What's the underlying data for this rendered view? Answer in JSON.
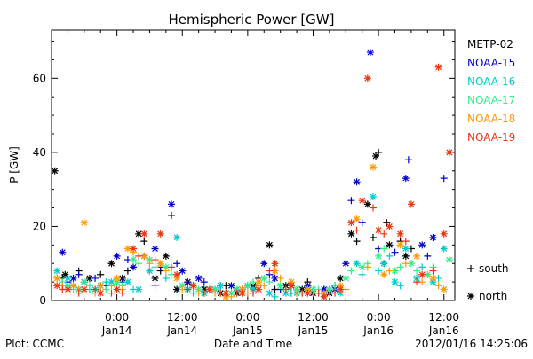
{
  "chart_data": {
    "type": "scatter",
    "title": "Hemispheric Power [GW]",
    "xlabel": "Date and Time",
    "ylabel": "P [GW]",
    "footer_left": "Plot: CCMC",
    "footer_right": "2012/01/16 14:25:06",
    "xlim": [
      -12,
      62
    ],
    "ylim": [
      0,
      73
    ],
    "grid": false,
    "legend_position": "right",
    "y_ticks": [
      "0",
      "20",
      "40",
      "60"
    ],
    "x_ticks": [
      {
        "x": 0,
        "time": "0:00",
        "date": "Jan14"
      },
      {
        "x": 12,
        "time": "12:00",
        "date": "Jan14"
      },
      {
        "x": 24,
        "time": "0:00",
        "date": "Jan15"
      },
      {
        "x": 36,
        "time": "12:00",
        "date": "Jan15"
      },
      {
        "x": 48,
        "time": "0:00",
        "date": "Jan16"
      },
      {
        "x": 60,
        "time": "12:00",
        "date": "Jan16"
      }
    ],
    "hemisphere_legend": [
      {
        "marker": "+",
        "label": "south"
      },
      {
        "marker": "*",
        "label": "north"
      }
    ],
    "series": [
      {
        "name": "METP-02",
        "color": "#000000",
        "north": [
          [
            -11.4,
            35
          ],
          [
            -9.5,
            7
          ],
          [
            -5,
            6
          ],
          [
            -1,
            10
          ],
          [
            1,
            6
          ],
          [
            4,
            18
          ],
          [
            7,
            6
          ],
          [
            9,
            12
          ],
          [
            11,
            3
          ],
          [
            13,
            5
          ],
          [
            16,
            3
          ],
          [
            19,
            2
          ],
          [
            22,
            2
          ],
          [
            25,
            4
          ],
          [
            28,
            15
          ],
          [
            31,
            4
          ],
          [
            34,
            3
          ],
          [
            36,
            2
          ],
          [
            39,
            2
          ],
          [
            41,
            6
          ],
          [
            43,
            18
          ],
          [
            46,
            26
          ],
          [
            47.5,
            39
          ],
          [
            50,
            15
          ],
          [
            53,
            12
          ]
        ],
        "south": [
          [
            -10,
            6
          ],
          [
            -7,
            8
          ],
          [
            -3,
            7
          ],
          [
            -2,
            4
          ],
          [
            2,
            8
          ],
          [
            5,
            16
          ],
          [
            8,
            8
          ],
          [
            10,
            23
          ],
          [
            14,
            4
          ],
          [
            17,
            3
          ],
          [
            20,
            4
          ],
          [
            23,
            3
          ],
          [
            26,
            6
          ],
          [
            29,
            3
          ],
          [
            32,
            2
          ],
          [
            35,
            5
          ],
          [
            38,
            3
          ],
          [
            40,
            4
          ],
          [
            44,
            16
          ],
          [
            47,
            17
          ],
          [
            48,
            40
          ],
          [
            49.5,
            21
          ],
          [
            52,
            16
          ],
          [
            54,
            14
          ]
        ]
      },
      {
        "name": "NOAA-15",
        "color": "#0000cc",
        "north": [
          [
            -10,
            13
          ],
          [
            -8,
            6
          ],
          [
            -6,
            5
          ],
          [
            -3,
            4
          ],
          [
            0,
            12
          ],
          [
            3,
            9
          ],
          [
            5,
            12
          ],
          [
            7,
            14
          ],
          [
            10,
            26
          ],
          [
            12,
            8
          ],
          [
            15,
            6
          ],
          [
            18,
            3
          ],
          [
            21,
            4
          ],
          [
            24,
            4
          ],
          [
            27,
            10
          ],
          [
            29,
            6
          ],
          [
            32,
            4
          ],
          [
            35,
            4
          ],
          [
            38,
            3
          ],
          [
            40,
            3
          ],
          [
            42,
            10
          ],
          [
            44,
            32
          ],
          [
            46.5,
            67
          ],
          [
            49,
            10
          ],
          [
            53,
            33
          ],
          [
            56,
            15
          ],
          [
            58,
            17
          ],
          [
            61,
            40
          ]
        ],
        "south": [
          [
            -9,
            5
          ],
          [
            -7,
            7
          ],
          [
            -4,
            6
          ],
          [
            1,
            5
          ],
          [
            2,
            11
          ],
          [
            6,
            8
          ],
          [
            8,
            9
          ],
          [
            11,
            10
          ],
          [
            13,
            5
          ],
          [
            16,
            5
          ],
          [
            19,
            4
          ],
          [
            22,
            3
          ],
          [
            25,
            3
          ],
          [
            28,
            7
          ],
          [
            30,
            3
          ],
          [
            33,
            3
          ],
          [
            36,
            2
          ],
          [
            39,
            3
          ],
          [
            43,
            27
          ],
          [
            45,
            21
          ],
          [
            48,
            14
          ],
          [
            51,
            13
          ],
          [
            53.5,
            38
          ],
          [
            57,
            12
          ],
          [
            60,
            33
          ]
        ]
      },
      {
        "name": "NOAA-16",
        "color": "#00cccc",
        "north": [
          [
            -11,
            8
          ],
          [
            -9,
            6
          ],
          [
            -7,
            3
          ],
          [
            -4,
            3
          ],
          [
            -1,
            5
          ],
          [
            2,
            5
          ],
          [
            4,
            3
          ],
          [
            6,
            8
          ],
          [
            11,
            17
          ],
          [
            13,
            3
          ],
          [
            16,
            2
          ],
          [
            19,
            4
          ],
          [
            22,
            3
          ],
          [
            25,
            3
          ],
          [
            28,
            2
          ],
          [
            31,
            2
          ],
          [
            33,
            2
          ],
          [
            35,
            3
          ],
          [
            38,
            1
          ],
          [
            41,
            2
          ],
          [
            44,
            10
          ],
          [
            47,
            28
          ],
          [
            49,
            10
          ],
          [
            51,
            5
          ],
          [
            53,
            14
          ],
          [
            55,
            6
          ],
          [
            58,
            5
          ],
          [
            60,
            14
          ]
        ],
        "south": [
          [
            -10,
            4
          ],
          [
            -8,
            4
          ],
          [
            -5,
            3
          ],
          [
            -2,
            5
          ],
          [
            1,
            4
          ],
          [
            3,
            3
          ],
          [
            7,
            4
          ],
          [
            9,
            6
          ],
          [
            14,
            2
          ],
          [
            17,
            3
          ],
          [
            20,
            2
          ],
          [
            23,
            2
          ],
          [
            26,
            4
          ],
          [
            29,
            1
          ],
          [
            32,
            2
          ],
          [
            35,
            2
          ],
          [
            37,
            2
          ],
          [
            40,
            3
          ],
          [
            45,
            7
          ],
          [
            48,
            8
          ],
          [
            50,
            12
          ],
          [
            52,
            4
          ],
          [
            56,
            9
          ],
          [
            59,
            6
          ]
        ]
      },
      {
        "name": "NOAA-17",
        "color": "#33ee88",
        "north": [
          [
            -11,
            6
          ],
          [
            -9,
            4
          ],
          [
            -6,
            5
          ],
          [
            -3,
            4
          ],
          [
            0,
            5
          ],
          [
            3,
            11
          ],
          [
            6,
            11
          ],
          [
            9,
            9
          ],
          [
            12,
            4
          ],
          [
            15,
            3
          ],
          [
            18,
            3
          ],
          [
            21,
            2
          ],
          [
            24,
            4
          ],
          [
            27,
            6
          ],
          [
            30,
            4
          ],
          [
            33,
            3
          ],
          [
            36,
            3
          ],
          [
            39,
            3
          ],
          [
            42,
            6
          ],
          [
            45,
            9
          ],
          [
            48,
            12
          ],
          [
            51,
            8
          ],
          [
            54,
            10
          ],
          [
            57,
            7
          ],
          [
            61,
            11
          ]
        ],
        "south": [
          [
            -10,
            5
          ],
          [
            -8,
            3
          ],
          [
            -5,
            4
          ],
          [
            -2,
            3
          ],
          [
            1,
            4
          ],
          [
            4,
            10
          ],
          [
            7,
            9
          ],
          [
            10,
            7
          ],
          [
            13,
            3
          ],
          [
            16,
            2
          ],
          [
            19,
            2
          ],
          [
            22,
            3
          ],
          [
            25,
            5
          ],
          [
            28,
            5
          ],
          [
            31,
            3
          ],
          [
            34,
            2
          ],
          [
            37,
            3
          ],
          [
            40,
            4
          ],
          [
            43,
            8
          ],
          [
            46,
            10
          ],
          [
            49,
            14
          ],
          [
            52,
            9
          ],
          [
            55,
            8
          ],
          [
            58,
            9
          ]
        ]
      },
      {
        "name": "NOAA-18",
        "color": "#ff9900",
        "north": [
          [
            -11,
            6
          ],
          [
            -8,
            4
          ],
          [
            -6,
            21
          ],
          [
            -3,
            4
          ],
          [
            0,
            6
          ],
          [
            2,
            14
          ],
          [
            5,
            12
          ],
          [
            8,
            10
          ],
          [
            11,
            6
          ],
          [
            14,
            4
          ],
          [
            17,
            3
          ],
          [
            20,
            1
          ],
          [
            23,
            3
          ],
          [
            26,
            5
          ],
          [
            29,
            8
          ],
          [
            32,
            5
          ],
          [
            35,
            3
          ],
          [
            38,
            2
          ],
          [
            41,
            4
          ],
          [
            44,
            22
          ],
          [
            47,
            36
          ],
          [
            49,
            7
          ],
          [
            52,
            15
          ],
          [
            55,
            12
          ],
          [
            58,
            6
          ],
          [
            60,
            3
          ],
          [
            61,
            40
          ]
        ],
        "south": [
          [
            -10,
            4
          ],
          [
            -7,
            3
          ],
          [
            -4,
            2
          ],
          [
            -1,
            4
          ],
          [
            1,
            3
          ],
          [
            3,
            13
          ],
          [
            6,
            10
          ],
          [
            9,
            8
          ],
          [
            12,
            3
          ],
          [
            15,
            2
          ],
          [
            18,
            2
          ],
          [
            21,
            1
          ],
          [
            24,
            2
          ],
          [
            27,
            4
          ],
          [
            30,
            6
          ],
          [
            33,
            2
          ],
          [
            36,
            2
          ],
          [
            39,
            2
          ],
          [
            42,
            3
          ],
          [
            46,
            9
          ],
          [
            50,
            8
          ],
          [
            53,
            10
          ],
          [
            56,
            5
          ],
          [
            59,
            4
          ]
        ]
      },
      {
        "name": "NOAA-19",
        "color": "#ee3311",
        "north": [
          [
            -11,
            4
          ],
          [
            -9,
            3
          ],
          [
            -6,
            3
          ],
          [
            -3,
            2
          ],
          [
            0,
            3
          ],
          [
            3,
            14
          ],
          [
            5,
            18
          ],
          [
            8,
            18
          ],
          [
            11,
            7
          ],
          [
            14,
            4
          ],
          [
            17,
            3
          ],
          [
            20,
            2
          ],
          [
            23,
            2
          ],
          [
            26,
            3
          ],
          [
            29,
            10
          ],
          [
            32,
            4
          ],
          [
            35,
            2
          ],
          [
            38,
            1
          ],
          [
            41,
            3
          ],
          [
            43,
            21
          ],
          [
            45,
            27
          ],
          [
            46,
            60
          ],
          [
            48,
            19
          ],
          [
            50,
            20
          ],
          [
            52,
            18
          ],
          [
            54,
            26
          ],
          [
            56,
            7
          ],
          [
            59,
            63
          ],
          [
            60,
            18
          ],
          [
            61,
            40
          ]
        ],
        "south": [
          [
            -10,
            3
          ],
          [
            -7,
            2
          ],
          [
            -4,
            3
          ],
          [
            -1,
            2
          ],
          [
            1,
            2
          ],
          [
            4,
            12
          ],
          [
            7,
            11
          ],
          [
            10,
            9
          ],
          [
            13,
            3
          ],
          [
            16,
            2
          ],
          [
            19,
            2
          ],
          [
            22,
            2
          ],
          [
            25,
            2
          ],
          [
            28,
            8
          ],
          [
            31,
            3
          ],
          [
            34,
            2
          ],
          [
            37,
            2
          ],
          [
            40,
            2
          ],
          [
            44,
            19
          ],
          [
            47,
            25
          ],
          [
            49,
            18
          ],
          [
            53,
            16
          ],
          [
            55,
            5
          ],
          [
            58,
            8
          ]
        ]
      }
    ]
  }
}
